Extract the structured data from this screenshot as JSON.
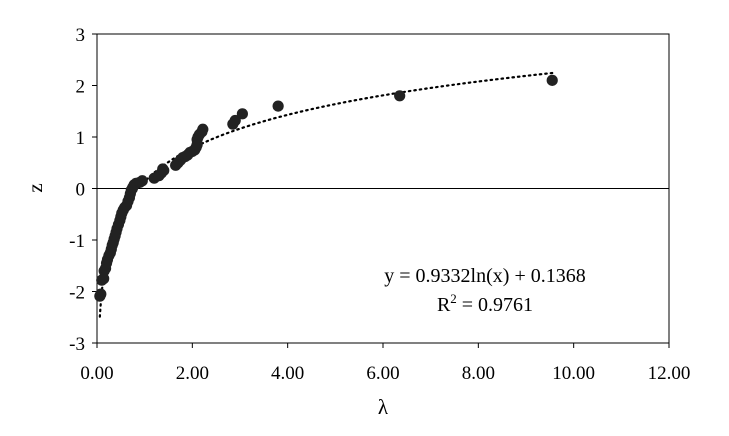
{
  "chart_data": {
    "type": "scatter",
    "xlabel": "λ",
    "ylabel": "z",
    "xlim": [
      0,
      12
    ],
    "ylim": [
      -3,
      3
    ],
    "x_ticks": [
      "0.00",
      "2.00",
      "4.00",
      "6.00",
      "8.00",
      "10.00",
      "12.00"
    ],
    "y_ticks": [
      "-3",
      "-2",
      "-1",
      "0",
      "1",
      "2",
      "3"
    ],
    "grid": false,
    "legend": "none",
    "marker_color": "#222222",
    "trendline": {
      "type": "logarithmic",
      "style": "dotted",
      "equation": "y = 0.9332ln(x) + 0.1368",
      "r2_label": "R",
      "r2_sup": "2",
      "r2_value": " = 0.9761",
      "a": 0.9332,
      "b": 0.1368,
      "x_range": [
        0.06,
        9.55
      ]
    },
    "points": [
      [
        0.06,
        -2.09
      ],
      [
        0.08,
        -2.05
      ],
      [
        0.1,
        -1.78
      ],
      [
        0.14,
        -1.75
      ],
      [
        0.15,
        -1.6
      ],
      [
        0.18,
        -1.55
      ],
      [
        0.2,
        -1.45
      ],
      [
        0.22,
        -1.38
      ],
      [
        0.25,
        -1.3
      ],
      [
        0.28,
        -1.25
      ],
      [
        0.3,
        -1.18
      ],
      [
        0.32,
        -1.1
      ],
      [
        0.34,
        -1.05
      ],
      [
        0.36,
        -0.98
      ],
      [
        0.38,
        -0.92
      ],
      [
        0.4,
        -0.85
      ],
      [
        0.42,
        -0.78
      ],
      [
        0.45,
        -0.7
      ],
      [
        0.48,
        -0.62
      ],
      [
        0.5,
        -0.55
      ],
      [
        0.52,
        -0.48
      ],
      [
        0.55,
        -0.42
      ],
      [
        0.58,
        -0.37
      ],
      [
        0.62,
        -0.33
      ],
      [
        0.65,
        -0.25
      ],
      [
        0.68,
        -0.18
      ],
      [
        0.7,
        -0.1
      ],
      [
        0.72,
        -0.03
      ],
      [
        0.75,
        0.02
      ],
      [
        0.78,
        0.07
      ],
      [
        0.82,
        0.1
      ],
      [
        0.9,
        0.12
      ],
      [
        0.95,
        0.15
      ],
      [
        1.2,
        0.2
      ],
      [
        1.3,
        0.25
      ],
      [
        1.35,
        0.3
      ],
      [
        1.38,
        0.38
      ],
      [
        1.4,
        0.35
      ],
      [
        1.65,
        0.45
      ],
      [
        1.7,
        0.5
      ],
      [
        1.75,
        0.55
      ],
      [
        1.8,
        0.6
      ],
      [
        1.85,
        0.62
      ],
      [
        1.9,
        0.65
      ],
      [
        1.95,
        0.7
      ],
      [
        2.0,
        0.72
      ],
      [
        2.05,
        0.75
      ],
      [
        2.08,
        0.8
      ],
      [
        2.1,
        0.85
      ],
      [
        2.1,
        0.95
      ],
      [
        2.12,
        1.0
      ],
      [
        2.15,
        1.05
      ],
      [
        2.2,
        1.1
      ],
      [
        2.22,
        1.15
      ],
      [
        2.85,
        1.25
      ],
      [
        2.9,
        1.32
      ],
      [
        3.05,
        1.45
      ],
      [
        3.8,
        1.6
      ],
      [
        6.35,
        1.8
      ],
      [
        9.55,
        2.1
      ]
    ]
  }
}
